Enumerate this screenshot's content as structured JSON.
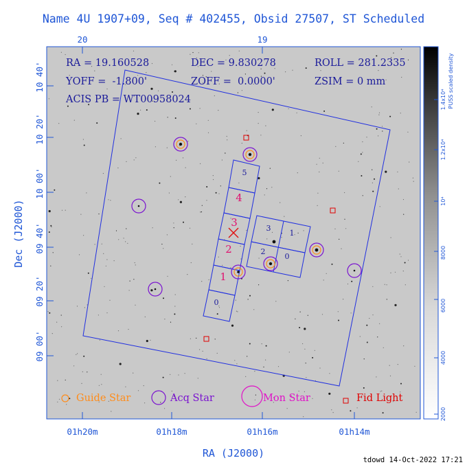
{
  "title": "Name 4U 1907+09, Seq # 402455, Obsid 27507, ST Scheduled",
  "header_info": {
    "ra": "RA = 19.160528",
    "dec": "DEC = 9.830278",
    "roll": "ROLL = 281.2335",
    "yoff": "YOFF =  -1.800'",
    "zoff": "ZOFF =  0.0000'",
    "zsim": "ZSIM = 0 mm",
    "acis": "ACIS PB = WT00958024"
  },
  "axes": {
    "xlabel": "RA (J2000)",
    "ylabel": "Dec (J2000)",
    "x_ticks": [
      "01h20m",
      "01h18m",
      "01h16m",
      "01h14m"
    ],
    "top_ticks": [
      "20",
      "19"
    ],
    "y_ticks": [
      "10 40'",
      "10 20'",
      "10 00'",
      "09 40'",
      "09 20'",
      "09 00'"
    ]
  },
  "colorbar": {
    "label_line1": "PUSS scaled density",
    "label_line2": "1.4x10⁴",
    "ticks": [
      "2000",
      "4000",
      "6000",
      "8000",
      "10⁴",
      "1.2x10⁴"
    ]
  },
  "ccds": {
    "acis_s": [
      "0",
      "1",
      "2",
      "3",
      "4",
      "5"
    ],
    "acis_i": [
      "0",
      "1",
      "2",
      "3"
    ]
  },
  "legend": {
    "guide": "Guide Star",
    "acq": "Acq Star",
    "mon": "Mon Star",
    "fid": "Fid Light"
  },
  "colors": {
    "frame": "#1f56d6",
    "guide": "#ff8c1a",
    "acq": "#7a12d0",
    "mon": "#e010c8",
    "fid": "#e00000"
  },
  "footer": "tdowd 14-Oct-2022 17:21"
}
